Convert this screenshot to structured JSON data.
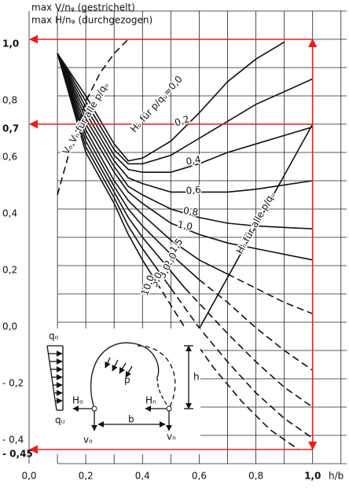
{
  "chart_data": {
    "type": "line",
    "title_lines": [
      "max V/nᵩ (gestrichelt)",
      "max H/nᵩ (durchgezogen)"
    ],
    "x_label": "h/b",
    "xlim": [
      0,
      1.12
    ],
    "ylim": [
      -0.5,
      1.1
    ],
    "xticks": [
      {
        "value": 0,
        "label": "0,0"
      },
      {
        "value": 0.2,
        "label": "0,2"
      },
      {
        "value": 0.4,
        "label": "0,4"
      },
      {
        "value": 0.6,
        "label": "0,6"
      },
      {
        "value": 0.8,
        "label": "0,8"
      },
      {
        "value": 1,
        "label": "1,0",
        "highlight": true
      }
    ],
    "yticks": [
      {
        "value": 1,
        "label": "1,0",
        "highlight": true
      },
      {
        "value": 0.8,
        "label": "0,8"
      },
      {
        "value": 0.7,
        "label": "0,7",
        "highlight": true
      },
      {
        "value": 0.6,
        "label": "0,6"
      },
      {
        "value": 0.4,
        "label": "0,4"
      },
      {
        "value": 0.2,
        "label": "0,2"
      },
      {
        "value": 0,
        "label": "0,0"
      },
      {
        "value": -0.2,
        "label": "- 0,2"
      },
      {
        "value": -0.4,
        "label": "- 0,4"
      },
      {
        "value": -0.45,
        "label": "- 0,45",
        "highlight": true
      }
    ],
    "xgrid": [
      0.1,
      0.2,
      0.3,
      0.4,
      0.5,
      0.6,
      0.7,
      0.8,
      0.9,
      1.0,
      1.1
    ],
    "ygrid": [
      -0.5,
      -0.4,
      -0.3,
      -0.2,
      -0.1,
      0,
      0.1,
      0.2,
      0.3,
      0.4,
      0.5,
      0.6,
      0.7,
      0.8,
      0.9,
      1.0,
      1.1
    ],
    "highlight_color": "#e8201c",
    "series": [
      {
        "name": "Hₒ für p/qᵤ=0,0",
        "x": [
          0.1,
          0.2,
          0.3,
          0.35,
          0.4,
          0.5,
          0.6,
          0.7,
          0.8,
          0.9
        ],
        "values": [
          0.95,
          0.8,
          0.63,
          0.57,
          0.58,
          0.64,
          0.74,
          0.85,
          0.93,
          0.99
        ]
      },
      {
        "name": "0,2",
        "x": [
          0.1,
          0.2,
          0.3,
          0.35,
          0.4,
          0.5,
          0.6,
          0.7,
          0.8,
          1.0
        ],
        "values": [
          0.95,
          0.78,
          0.61,
          0.56,
          0.56,
          0.59,
          0.65,
          0.71,
          0.77,
          0.86
        ]
      },
      {
        "name": "0,4",
        "x": [
          0.1,
          0.2,
          0.3,
          0.35,
          0.4,
          0.5,
          0.6,
          0.7,
          0.8,
          1.0
        ],
        "values": [
          0.95,
          0.76,
          0.59,
          0.54,
          0.53,
          0.53,
          0.56,
          0.6,
          0.63,
          0.69
        ]
      },
      {
        "name": "0,6",
        "x": [
          0.1,
          0.2,
          0.3,
          0.35,
          0.4,
          0.5,
          0.6,
          0.7,
          0.8,
          1.0
        ],
        "values": [
          0.95,
          0.74,
          0.57,
          0.51,
          0.49,
          0.46,
          0.46,
          0.46,
          0.47,
          0.5
        ]
      },
      {
        "name": "0,8",
        "x": [
          0.1,
          0.2,
          0.3,
          0.35,
          0.4,
          0.5,
          0.6,
          0.7,
          0.8,
          1.0
        ],
        "values": [
          0.95,
          0.72,
          0.55,
          0.48,
          0.45,
          0.4,
          0.37,
          0.35,
          0.34,
          0.33
        ]
      },
      {
        "name": "1,0",
        "x": [
          0.1,
          0.2,
          0.3,
          0.35,
          0.4,
          0.5,
          0.6,
          0.7,
          0.8,
          1.0
        ],
        "values": [
          0.95,
          0.7,
          0.53,
          0.46,
          0.42,
          0.35,
          0.31,
          0.28,
          0.26,
          0.22
        ]
      },
      {
        "name": "1,5",
        "x": [
          0.1,
          0.2,
          0.3,
          0.35,
          0.4,
          0.5,
          0.6,
          0.7
        ],
        "values": [
          0.95,
          0.68,
          0.5,
          0.43,
          0.38,
          0.29,
          0.22,
          0.17
        ],
        "dash_x": [
          0.7,
          0.8,
          0.9,
          1.0
        ],
        "dash_values": [
          0.17,
          0.12,
          0.07,
          0.03
        ]
      },
      {
        "name": "2,0",
        "x": [
          0.1,
          0.2,
          0.3,
          0.35,
          0.4,
          0.5,
          0.6
        ],
        "values": [
          0.95,
          0.66,
          0.48,
          0.4,
          0.34,
          0.24,
          0.15
        ],
        "dash_x": [
          0.6,
          0.7,
          0.8,
          0.9,
          1.0
        ],
        "dash_values": [
          0.15,
          0.07,
          -0.02,
          -0.1,
          -0.17
        ]
      },
      {
        "name": "3,0",
        "x": [
          0.1,
          0.2,
          0.3,
          0.35,
          0.4,
          0.5,
          0.55
        ],
        "values": [
          0.95,
          0.64,
          0.46,
          0.37,
          0.3,
          0.18,
          0.12
        ],
        "dash_x": [
          0.55,
          0.7,
          0.8,
          0.9,
          1.0
        ],
        "dash_values": [
          0.12,
          -0.04,
          -0.14,
          -0.23,
          -0.3
        ]
      },
      {
        "name": "5,0",
        "x": [
          0.1,
          0.2,
          0.3,
          0.35,
          0.4,
          0.5
        ],
        "values": [
          0.95,
          0.62,
          0.44,
          0.34,
          0.26,
          0.12
        ],
        "dash_x": [
          0.5,
          0.6,
          0.7,
          0.8,
          0.9,
          1.0
        ],
        "dash_values": [
          0.12,
          -0.02,
          -0.14,
          -0.25,
          -0.34,
          -0.41
        ]
      },
      {
        "name": "10,0",
        "x": [
          0.1,
          0.2,
          0.3,
          0.35,
          0.4,
          0.45
        ],
        "values": [
          0.95,
          0.6,
          0.42,
          0.31,
          0.22,
          0.14
        ],
        "dash_x": [
          0.45,
          0.55,
          0.65,
          0.75,
          0.85,
          0.95
        ],
        "dash_values": [
          0.14,
          -0.02,
          -0.16,
          -0.28,
          -0.38,
          -0.45
        ]
      },
      {
        "name": "Hₙ für alle p/qᵤ",
        "x": [
          0.43,
          1.0
        ],
        "values": [
          -0.33,
          0.7
        ]
      },
      {
        "name": "Vₒ,Vₙ für alle p/qᵤ",
        "dash_x": [
          0.1,
          0.15,
          0.2,
          0.25,
          0.3,
          0.35
        ],
        "dash_values": [
          0.45,
          0.63,
          0.78,
          0.88,
          0.95,
          1.0
        ]
      }
    ]
  },
  "inset": {
    "q_top": "qₒ",
    "q_bottom": "qᵤ",
    "p": "p",
    "h_left": "Hₒ",
    "h_right": "Hₙ",
    "b": "b",
    "h": "h",
    "v_left": "vₒ",
    "v_right": "vₙ"
  }
}
